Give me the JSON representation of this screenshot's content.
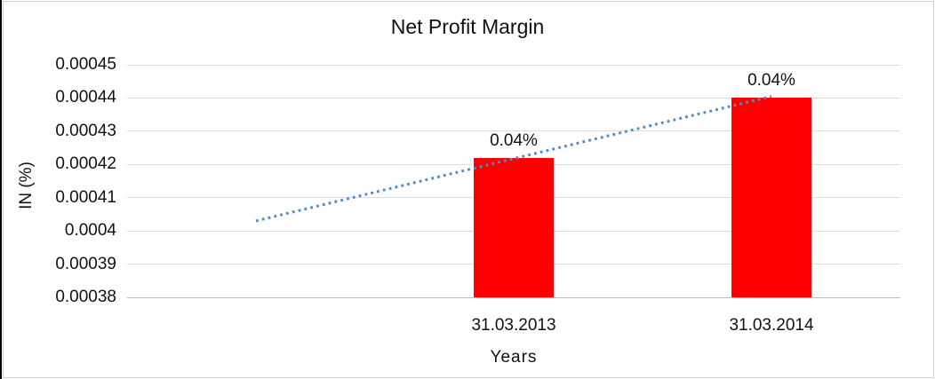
{
  "frame": {
    "background": "#ffffff",
    "border_color": "#d2d2d2",
    "left_edge_color": "#000000"
  },
  "chart_data": {
    "type": "bar",
    "title": "Net Profit Margin",
    "xlabel": "Years",
    "ylabel": "IN (%)",
    "categories": [
      "",
      "31.03.2013",
      "31.03.2014"
    ],
    "values": [
      null,
      0.000422,
      0.00044
    ],
    "data_labels": [
      "",
      "0.04%",
      "0.04%"
    ],
    "bar_color": "#ff0000",
    "ylim": [
      0.00038,
      0.00045
    ],
    "yticks": [
      {
        "value": 0.00038,
        "label": "0.00038"
      },
      {
        "value": 0.00039,
        "label": "0.00039"
      },
      {
        "value": 0.0004,
        "label": "0.0004"
      },
      {
        "value": 0.00041,
        "label": "0.00041"
      },
      {
        "value": 0.00042,
        "label": "0.00042"
      },
      {
        "value": 0.00043,
        "label": "0.00043"
      },
      {
        "value": 0.00044,
        "label": "0.00044"
      },
      {
        "value": 0.00045,
        "label": "0.00045"
      }
    ],
    "grid": "on",
    "gridline_color": "#dcdcdc",
    "axis_line_color": "#bdbdbd",
    "legend": "none",
    "trendline": {
      "style": "dotted",
      "color": "#4f8bc9",
      "start_category_index": 0,
      "end_category_index": 2,
      "start_value": 0.000403,
      "end_value": 0.0004405
    }
  }
}
